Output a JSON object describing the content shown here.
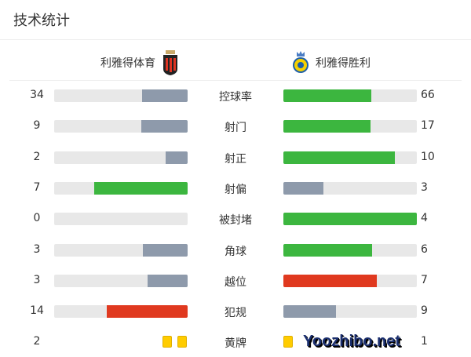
{
  "title": "技术统计",
  "home": {
    "name": "利雅得体育",
    "logo": "shield-red-black-crest"
  },
  "away": {
    "name": "利雅得胜利",
    "logo": "yellow-blue-crown-crest"
  },
  "colors": {
    "win": "#3cb63f",
    "lose": "#8e9aab",
    "foul": "#e0391f",
    "track": "#e8e8e8",
    "card": "#ffcc00"
  },
  "stats": [
    {
      "label": "控球率",
      "home": 34,
      "away": 66,
      "type": "good"
    },
    {
      "label": "射门",
      "home": 9,
      "away": 17,
      "type": "good"
    },
    {
      "label": "射正",
      "home": 2,
      "away": 10,
      "type": "good"
    },
    {
      "label": "射偏",
      "home": 7,
      "away": 3,
      "type": "good"
    },
    {
      "label": "被封堵",
      "home": 0,
      "away": 4,
      "type": "good"
    },
    {
      "label": "角球",
      "home": 3,
      "away": 6,
      "type": "good"
    },
    {
      "label": "越位",
      "home": 3,
      "away": 7,
      "type": "bad"
    },
    {
      "label": "犯规",
      "home": 14,
      "away": 9,
      "type": "bad"
    },
    {
      "label": "黄牌",
      "home": 2,
      "away": 1,
      "type": "cards"
    }
  ],
  "watermark": "Yoozhibo.net"
}
